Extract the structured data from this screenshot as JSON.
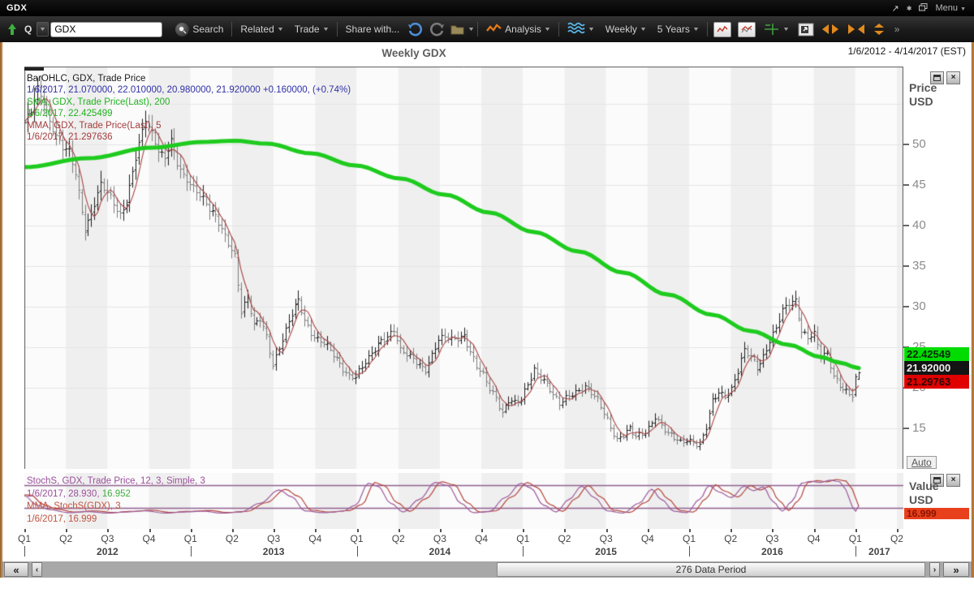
{
  "window": {
    "title": "GDX",
    "menu_label": "Menu"
  },
  "toolbar": {
    "q_label": "Q",
    "symbol_input": "GDX",
    "search_label": "Search",
    "related_label": "Related",
    "trade_label": "Trade",
    "share_label": "Share with...",
    "analysis_label": "Analysis",
    "period_label": "Weekly",
    "range_label": "5 Years"
  },
  "chart": {
    "header": {
      "title": "Weekly GDX",
      "date_range": "1/6/2012 - 4/14/2017 (EST)"
    },
    "price_axis": {
      "label_line1": "Price",
      "label_line2": "USD",
      "ticks": [
        50,
        45,
        40,
        35,
        30,
        25,
        20,
        15
      ],
      "auto_label": "Auto"
    },
    "value_axis": {
      "label_line1": "Value",
      "label_line2": "USD"
    },
    "price_tags": {
      "sma": "22.42549",
      "last": "21.92000",
      "mma": "21.29763"
    },
    "value_tag": "16.999",
    "legend_main": [
      {
        "parts": [
          {
            "text": "BarOHLC, GDX, Trade Price",
            "color": "#1a1a1a"
          }
        ]
      },
      {
        "parts": [
          {
            "text": "1/6/2017, 21.070000, 22.010000, 20.980000, 21.920000 +0.160000, (+0.74%)",
            "color": "#3030a8"
          }
        ]
      },
      {
        "parts": [
          {
            "text": "SMA, GDX, Trade Price(Last),  200",
            "color": "#21b21f"
          }
        ]
      },
      {
        "parts": [
          {
            "text": "1/6/2017, 22.425499",
            "color": "#21b21f"
          }
        ]
      },
      {
        "parts": [
          {
            "text": "MMA, GDX, Trade Price(Last),  5",
            "color": "#a33c3c"
          }
        ]
      },
      {
        "parts": [
          {
            "text": "1/6/2017, 21.297636",
            "color": "#a33c3c"
          }
        ]
      }
    ],
    "legend_stoch": [
      {
        "parts": [
          {
            "text": "StochS, GDX, Trade Price,  12, 3, Simple, 3",
            "color": "#9a4f9a"
          }
        ]
      },
      {
        "parts": [
          {
            "text": "1/6/2017, 28.930, ",
            "color": "#9a4f9a"
          },
          {
            "text": "16.952",
            "color": "#3fae3f"
          }
        ]
      },
      {
        "parts": [
          {
            "text": "MMA, StochS(GDX),  3",
            "color": "#c05540"
          }
        ]
      },
      {
        "parts": [
          {
            "text": "1/6/2017, 16.999",
            "color": "#c05540"
          }
        ]
      }
    ]
  },
  "scrollbar": {
    "label": "276 Data Period"
  },
  "chart_data": {
    "type": "ohlc",
    "symbol": "GDX",
    "interval": "Weekly",
    "range": "5 Years",
    "title": "Weekly GDX",
    "date_range": [
      "1/6/2012",
      "4/14/2017"
    ],
    "x_total_weeks": 276,
    "weeks_drawn": 262,
    "price_ylim": [
      10,
      59.6
    ],
    "price_gridlines": [
      15,
      20,
      25,
      30,
      35,
      40,
      45,
      50,
      55
    ],
    "last_bar": {
      "date": "1/6/2017",
      "open": 21.07,
      "high": 22.01,
      "low": 20.98,
      "close": 21.92,
      "change": "+0.160000",
      "change_pct": "+0.74%"
    },
    "close_anchors": [
      [
        0,
        52.5
      ],
      [
        2,
        54
      ],
      [
        4,
        57
      ],
      [
        6,
        55.5
      ],
      [
        8,
        53
      ],
      [
        10,
        51
      ],
      [
        12,
        49.5
      ],
      [
        14,
        49
      ],
      [
        16,
        46.5
      ],
      [
        19,
        39.7
      ],
      [
        21,
        41.5
      ],
      [
        24,
        45
      ],
      [
        27,
        43.5
      ],
      [
        30,
        41.5
      ],
      [
        32,
        43
      ],
      [
        34,
        46.5
      ],
      [
        36,
        50
      ],
      [
        38,
        53
      ],
      [
        40,
        51.5
      ],
      [
        42,
        49.5
      ],
      [
        44,
        48.5
      ],
      [
        46,
        50.5
      ],
      [
        48,
        47.5
      ],
      [
        50,
        46
      ],
      [
        52,
        45.3
      ],
      [
        54,
        44.5
      ],
      [
        56,
        43.5
      ],
      [
        58,
        42
      ],
      [
        60,
        41
      ],
      [
        62,
        39.5
      ],
      [
        64,
        38
      ],
      [
        66,
        36.5
      ],
      [
        68,
        29.5
      ],
      [
        70,
        31
      ],
      [
        72,
        27.5
      ],
      [
        74,
        28.5
      ],
      [
        76,
        26.5
      ],
      [
        78,
        23
      ],
      [
        80,
        25
      ],
      [
        82,
        27
      ],
      [
        84,
        29
      ],
      [
        86,
        30.8
      ],
      [
        88,
        28.5
      ],
      [
        90,
        27
      ],
      [
        92,
        26
      ],
      [
        94,
        25.5
      ],
      [
        96,
        24.5
      ],
      [
        98,
        23.5
      ],
      [
        100,
        22.5
      ],
      [
        102,
        21.6
      ],
      [
        104,
        21.5
      ],
      [
        106,
        22.5
      ],
      [
        108,
        23.5
      ],
      [
        110,
        24.8
      ],
      [
        112,
        26
      ],
      [
        114,
        26.5
      ],
      [
        116,
        27.3
      ],
      [
        118,
        24.5
      ],
      [
        120,
        24
      ],
      [
        122,
        23.6
      ],
      [
        124,
        23
      ],
      [
        126,
        22.4
      ],
      [
        128,
        24
      ],
      [
        130,
        25.8
      ],
      [
        132,
        26.2
      ],
      [
        134,
        26
      ],
      [
        136,
        26.3
      ],
      [
        138,
        26.6
      ],
      [
        140,
        24.5
      ],
      [
        142,
        22.5
      ],
      [
        144,
        21.5
      ],
      [
        146,
        20
      ],
      [
        148,
        19
      ],
      [
        150,
        17
      ],
      [
        152,
        18.5
      ],
      [
        154,
        18
      ],
      [
        156,
        18.4
      ],
      [
        158,
        20.5
      ],
      [
        160,
        22.4
      ],
      [
        162,
        21.5
      ],
      [
        164,
        20.5
      ],
      [
        166,
        19
      ],
      [
        168,
        17.9
      ],
      [
        170,
        18.8
      ],
      [
        172,
        19.5
      ],
      [
        174,
        19.8
      ],
      [
        176,
        20.1
      ],
      [
        178,
        19.3
      ],
      [
        180,
        18.4
      ],
      [
        182,
        17
      ],
      [
        184,
        15.4
      ],
      [
        186,
        13.7
      ],
      [
        188,
        14.2
      ],
      [
        190,
        14.8
      ],
      [
        192,
        13.9
      ],
      [
        194,
        14.4
      ],
      [
        196,
        15.2
      ],
      [
        198,
        16.6
      ],
      [
        200,
        15.3
      ],
      [
        202,
        14.2
      ],
      [
        204,
        13.8
      ],
      [
        206,
        13.4
      ],
      [
        208,
        13.8
      ],
      [
        210,
        13.4
      ],
      [
        212,
        12.8
      ],
      [
        214,
        15
      ],
      [
        216,
        18.3
      ],
      [
        218,
        19.6
      ],
      [
        220,
        19.2
      ],
      [
        222,
        19.9
      ],
      [
        224,
        22
      ],
      [
        226,
        24.5
      ],
      [
        228,
        23.8
      ],
      [
        230,
        22.6
      ],
      [
        232,
        24
      ],
      [
        234,
        25.9
      ],
      [
        236,
        27.3
      ],
      [
        238,
        29.4
      ],
      [
        240,
        30.4
      ],
      [
        242,
        30.9
      ],
      [
        244,
        27.2
      ],
      [
        246,
        26.3
      ],
      [
        248,
        26.6
      ],
      [
        250,
        23.7
      ],
      [
        252,
        24.1
      ],
      [
        254,
        21.6
      ],
      [
        256,
        20.6
      ],
      [
        258,
        19.6
      ],
      [
        260,
        19
      ],
      [
        261,
        20.9
      ],
      [
        262,
        21.92
      ]
    ],
    "sma200": {
      "period": 200,
      "last": 22.425499,
      "anchors": [
        [
          0,
          47.2
        ],
        [
          20,
          48.3
        ],
        [
          40,
          49.6
        ],
        [
          56,
          50.3
        ],
        [
          66,
          50.45
        ],
        [
          76,
          50.1
        ],
        [
          90,
          48.9
        ],
        [
          104,
          47.4
        ],
        [
          118,
          45.8
        ],
        [
          132,
          43.8
        ],
        [
          146,
          41.6
        ],
        [
          160,
          39.2
        ],
        [
          174,
          36.8
        ],
        [
          188,
          34.2
        ],
        [
          202,
          31.5
        ],
        [
          216,
          29.0
        ],
        [
          228,
          27.0
        ],
        [
          240,
          25.3
        ],
        [
          250,
          23.8
        ],
        [
          256,
          23.1
        ],
        [
          262,
          22.43
        ]
      ]
    },
    "mma": {
      "period": 5,
      "last": 21.297636
    },
    "stoch_panel": {
      "indicator": "StochS(12,3,Simple,3)",
      "last_k": 28.93,
      "last_d": 16.952,
      "mma_last": 16.999,
      "refs": [
        80,
        20
      ],
      "ylim": [
        0,
        100
      ],
      "points": [
        [
          0,
          55
        ],
        [
          4,
          30
        ],
        [
          8,
          18
        ],
        [
          14,
          10
        ],
        [
          20,
          13
        ],
        [
          26,
          9
        ],
        [
          32,
          12
        ],
        [
          38,
          15
        ],
        [
          44,
          9
        ],
        [
          50,
          12
        ],
        [
          56,
          14
        ],
        [
          62,
          9
        ],
        [
          68,
          12
        ],
        [
          74,
          35
        ],
        [
          80,
          70
        ],
        [
          84,
          52
        ],
        [
          88,
          15
        ],
        [
          94,
          10
        ],
        [
          100,
          14
        ],
        [
          104,
          30
        ],
        [
          108,
          88
        ],
        [
          111,
          80
        ],
        [
          115,
          35
        ],
        [
          119,
          12
        ],
        [
          124,
          45
        ],
        [
          129,
          90
        ],
        [
          133,
          82
        ],
        [
          137,
          35
        ],
        [
          141,
          10
        ],
        [
          146,
          13
        ],
        [
          151,
          50
        ],
        [
          156,
          88
        ],
        [
          159,
          75
        ],
        [
          163,
          30
        ],
        [
          167,
          12
        ],
        [
          171,
          45
        ],
        [
          175,
          80
        ],
        [
          179,
          50
        ],
        [
          183,
          15
        ],
        [
          188,
          9
        ],
        [
          193,
          35
        ],
        [
          197,
          72
        ],
        [
          200,
          45
        ],
        [
          204,
          14
        ],
        [
          208,
          10
        ],
        [
          212,
          45
        ],
        [
          215,
          82
        ],
        [
          218,
          65
        ],
        [
          222,
          50
        ],
        [
          226,
          80
        ],
        [
          229,
          68
        ],
        [
          232,
          78
        ],
        [
          235,
          40
        ],
        [
          238,
          14
        ],
        [
          241,
          40
        ],
        [
          244,
          88
        ],
        [
          247,
          93
        ],
        [
          250,
          90
        ],
        [
          253,
          96
        ],
        [
          256,
          92
        ],
        [
          258,
          70
        ],
        [
          260,
          25
        ],
        [
          261,
          14
        ],
        [
          262,
          29
        ]
      ]
    },
    "x_axis": {
      "quarter_labels": [
        "Q1",
        "Q2",
        "Q3",
        "Q4",
        "Q1",
        "Q2",
        "Q3",
        "Q4",
        "Q1",
        "Q2",
        "Q3",
        "Q4",
        "Q1",
        "Q2",
        "Q3",
        "Q4",
        "Q1",
        "Q2",
        "Q3",
        "Q4",
        "Q1",
        "Q2"
      ],
      "year_labels": [
        "2012",
        "2013",
        "2014",
        "2015",
        "2016",
        "2017"
      ]
    }
  }
}
